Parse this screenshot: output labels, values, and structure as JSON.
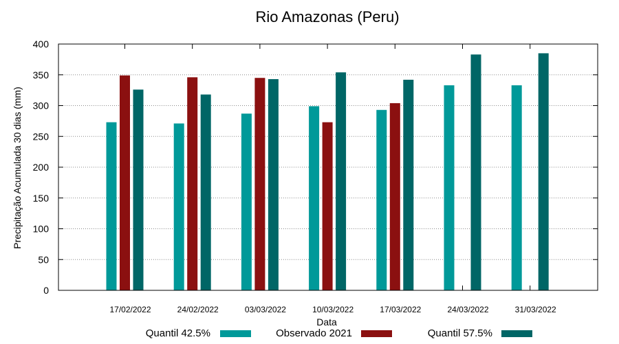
{
  "chart_data": {
    "type": "bar",
    "title": "Rio Amazonas (Peru)",
    "xlabel": "Data",
    "ylabel": "Precipitação Acumulada 30 dias (mm)",
    "ylim": [
      0,
      400
    ],
    "yticks": [
      0,
      50,
      100,
      150,
      200,
      250,
      300,
      350,
      400
    ],
    "grid": true,
    "legend_position": "bottom",
    "categories": [
      "17/02/2022",
      "24/02/2022",
      "03/03/2022",
      "10/03/2022",
      "17/03/2022",
      "24/03/2022",
      "31/03/2022"
    ],
    "series": [
      {
        "name": "Quantil 42.5%",
        "color": "#009999",
        "values": [
          273,
          271,
          287,
          299,
          293,
          333,
          333
        ]
      },
      {
        "name": "Observado 2021",
        "color": "#8b1010",
        "values": [
          349,
          346,
          345,
          273,
          304,
          null,
          null
        ]
      },
      {
        "name": "Quantil 57.5%",
        "color": "#006666",
        "values": [
          326,
          318,
          343,
          354,
          342,
          383,
          385
        ]
      }
    ]
  }
}
